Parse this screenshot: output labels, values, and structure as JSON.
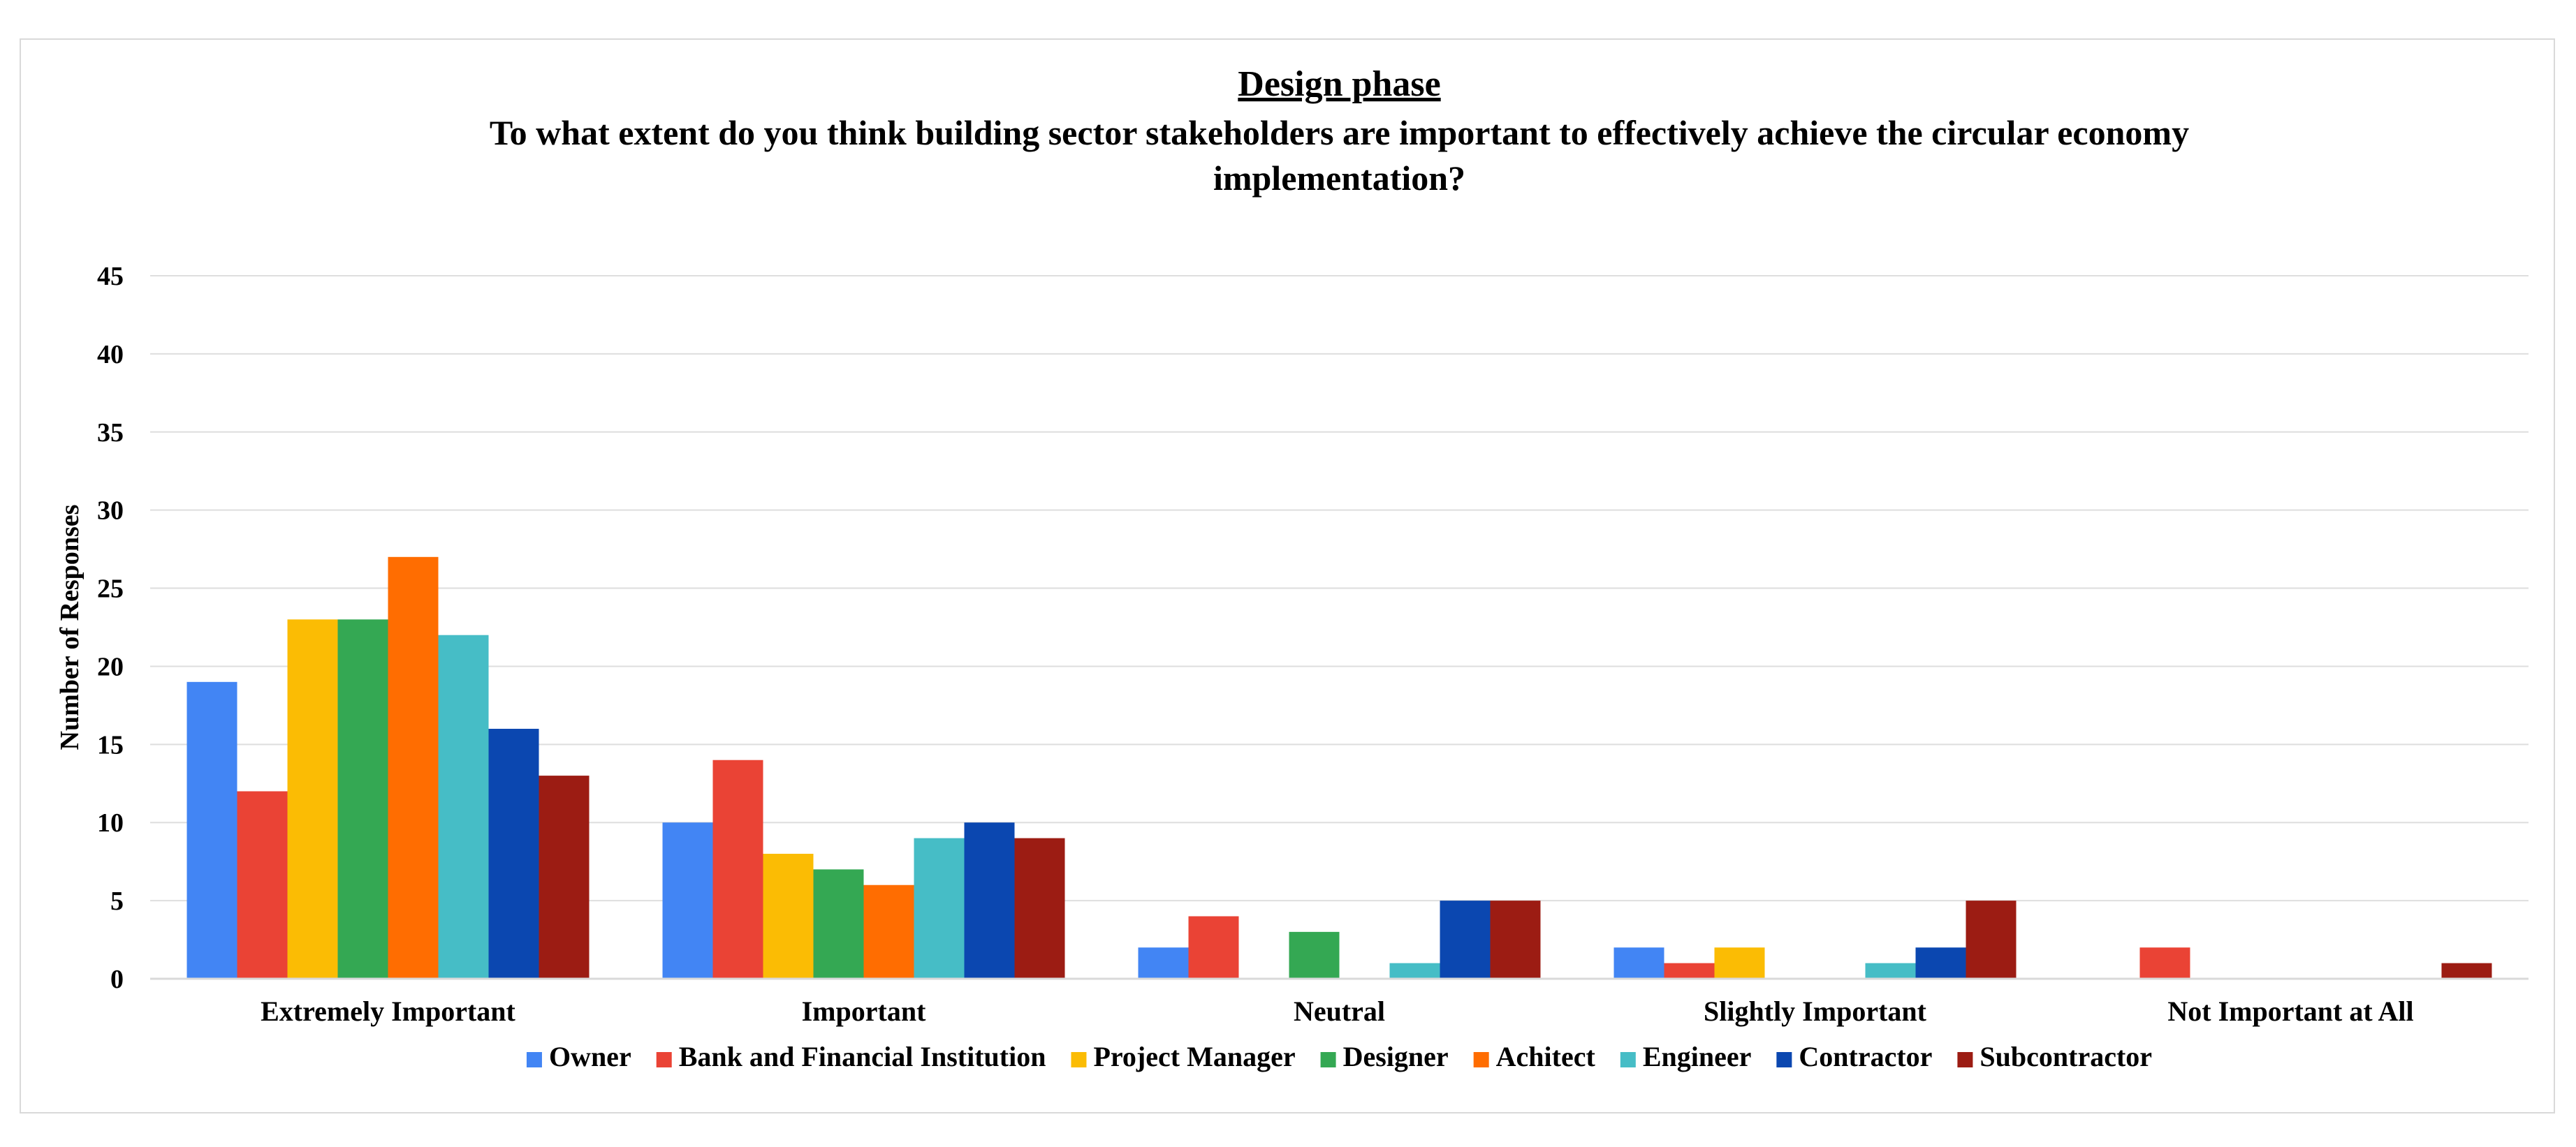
{
  "chart_data": {
    "type": "bar",
    "title": "Design phase",
    "subtitle_lines": [
      "To what extent do you think building sector stakeholders are important to effectively achieve the circular economy",
      "implementation?"
    ],
    "xlabel": "",
    "ylabel": "Number of Responses",
    "ylim": [
      0,
      45
    ],
    "yticks": [
      0,
      5,
      10,
      15,
      20,
      25,
      30,
      35,
      40,
      45
    ],
    "grid": true,
    "legend_position": "bottom",
    "categories": [
      "Extremely Important",
      "Important",
      "Neutral",
      "Slightly Important",
      "Not Important at All"
    ],
    "series": [
      {
        "name": "Owner",
        "color": "#4285f4",
        "values": [
          19,
          10,
          2,
          2,
          0
        ]
      },
      {
        "name": "Bank and Financial Institution",
        "color": "#ea4335",
        "values": [
          12,
          14,
          4,
          1,
          2
        ]
      },
      {
        "name": "Project Manager",
        "color": "#fbbc04",
        "values": [
          23,
          8,
          0,
          2,
          0
        ]
      },
      {
        "name": "Designer",
        "color": "#34a853",
        "values": [
          23,
          7,
          3,
          0,
          0
        ]
      },
      {
        "name": "Achitect",
        "color": "#ff6d01",
        "values": [
          27,
          6,
          0,
          0,
          0
        ]
      },
      {
        "name": "Engineer",
        "color": "#46bdc6",
        "values": [
          22,
          9,
          1,
          1,
          0
        ]
      },
      {
        "name": "Contractor",
        "color": "#0b47b0",
        "values": [
          16,
          10,
          5,
          2,
          0
        ]
      },
      {
        "name": "Subcontractor",
        "color": "#9c1c13",
        "values": [
          13,
          9,
          5,
          5,
          1
        ]
      }
    ]
  }
}
